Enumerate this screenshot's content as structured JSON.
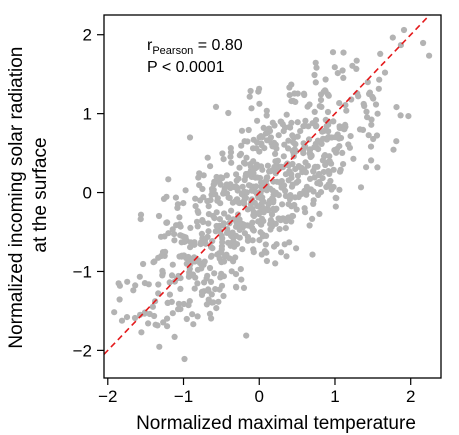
{
  "chart_data": {
    "type": "scatter",
    "xlabel": "Normalized maximal temperature",
    "ylabel_lines": [
      "Normalized incoming solar radiation",
      "at the surface"
    ],
    "xlim": [
      -2.05,
      2.4
    ],
    "ylim": [
      -2.35,
      2.25
    ],
    "xticks": [
      "−2",
      "−1",
      "0",
      "1",
      "2"
    ],
    "xtick_values": [
      -2,
      -1,
      0,
      1,
      2
    ],
    "yticks": [
      "−2",
      "−1",
      "0",
      "1",
      "2"
    ],
    "ytick_values": [
      -2,
      -1,
      0,
      1,
      2
    ],
    "grid": false,
    "point_color": "#b3b3b3",
    "fit_line_color": "#e41a1c",
    "fit_line_style": "dashed",
    "fit_line": {
      "slope": 1.0,
      "intercept": 0.0
    },
    "annotation": {
      "r_prefix": "r",
      "r_subscript": "Pearson",
      "r_value": " = 0.80",
      "p_text": "P < 0.0001"
    },
    "sample": {
      "n": 800,
      "correlation": 0.8
    },
    "x": [],
    "y": []
  }
}
